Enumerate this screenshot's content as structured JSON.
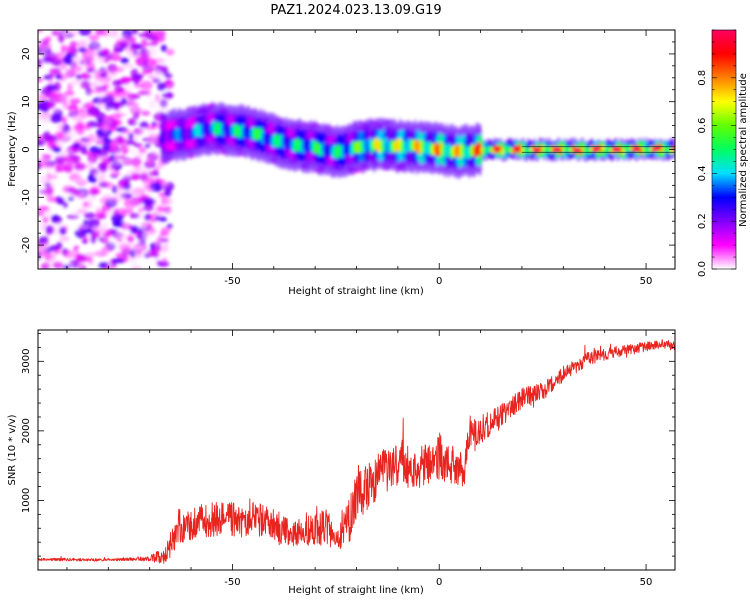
{
  "title": "PAZ1.2024.023.13.09.G19",
  "colors": {
    "snr_line": "#e8241f",
    "axis": "#000000",
    "colormap": [
      "#ffffff",
      "#ff00ff",
      "#8000ff",
      "#0000ff",
      "#00e0ff",
      "#00ff60",
      "#60ff00",
      "#ffff00",
      "#ff8000",
      "#ff0000",
      "#ff0060"
    ]
  },
  "chart_data": [
    {
      "type": "heatmap",
      "title": "PAZ1.2024.023.13.09.G19",
      "xlabel": "Height of straight line (km)",
      "ylabel": "Frequency (Hz)",
      "xlim": [
        -97,
        57
      ],
      "ylim": [
        -25,
        25
      ],
      "xticks": [
        -50,
        0,
        50
      ],
      "yticks": [
        -20,
        -10,
        0,
        10,
        20
      ],
      "colorbar": {
        "label": "Normalized spectral amplitude",
        "range": [
          0.0,
          1.0
        ],
        "ticks": [
          0.0,
          0.2,
          0.4,
          0.6,
          0.8
        ]
      },
      "ridge": {
        "x": [
          -67,
          -60,
          -55,
          -50,
          -45,
          -40,
          -35,
          -30,
          -25,
          -20,
          -15,
          -10,
          -5,
          0,
          5,
          10,
          20,
          30,
          40,
          50,
          57
        ],
        "frequency": [
          2.5,
          3.5,
          4.5,
          4.0,
          3.5,
          2.0,
          1.0,
          0.5,
          -0.5,
          0.5,
          1.0,
          0.8,
          0.5,
          0.0,
          -0.5,
          0.0,
          0.0,
          0.0,
          0.0,
          0.0,
          0.0
        ],
        "amplitude": [
          0.3,
          0.35,
          0.45,
          0.45,
          0.5,
          0.45,
          0.45,
          0.5,
          0.45,
          0.55,
          0.65,
          0.65,
          0.7,
          0.75,
          0.7,
          0.8,
          0.85,
          0.88,
          0.88,
          0.88,
          0.88
        ]
      },
      "noise_region_x": [
        -97,
        -67
      ],
      "grid": false,
      "legend": "none"
    },
    {
      "type": "line",
      "xlabel": "Height of straight line (km)",
      "ylabel": "SNR (10 * v/v)",
      "xlim": [
        -97,
        57
      ],
      "ylim": [
        0,
        3450
      ],
      "xticks": [
        -50,
        0,
        50
      ],
      "yticks": [
        1000,
        2000,
        3000
      ],
      "x": [
        -97,
        -90,
        -85,
        -80,
        -75,
        -70,
        -66,
        -63,
        -60,
        -55,
        -50,
        -47,
        -45,
        -40,
        -35,
        -33,
        -30,
        -27,
        -25,
        -22,
        -20,
        -18,
        -15,
        -12,
        -10,
        -7,
        -5,
        -2,
        0,
        2,
        5,
        6,
        7,
        10,
        15,
        20,
        25,
        30,
        35,
        40,
        45,
        50,
        55,
        57
      ],
      "y": [
        150,
        150,
        140,
        150,
        155,
        160,
        200,
        600,
        650,
        700,
        700,
        650,
        750,
        600,
        500,
        550,
        550,
        600,
        350,
        650,
        1100,
        1100,
        1300,
        1400,
        1500,
        1450,
        1450,
        1500,
        1600,
        1500,
        1450,
        1300,
        1900,
        2000,
        2200,
        2450,
        2550,
        2800,
        3000,
        3100,
        3150,
        3200,
        3250,
        3200
      ],
      "noise_amplitude": [
        20,
        20,
        20,
        20,
        25,
        40,
        150,
        250,
        250,
        250,
        250,
        200,
        250,
        250,
        200,
        200,
        250,
        300,
        100,
        350,
        400,
        350,
        350,
        350,
        400,
        300,
        300,
        300,
        350,
        300,
        250,
        200,
        200,
        200,
        180,
        150,
        130,
        110,
        100,
        90,
        80,
        70,
        70,
        70
      ],
      "grid": false,
      "legend": "none"
    }
  ]
}
